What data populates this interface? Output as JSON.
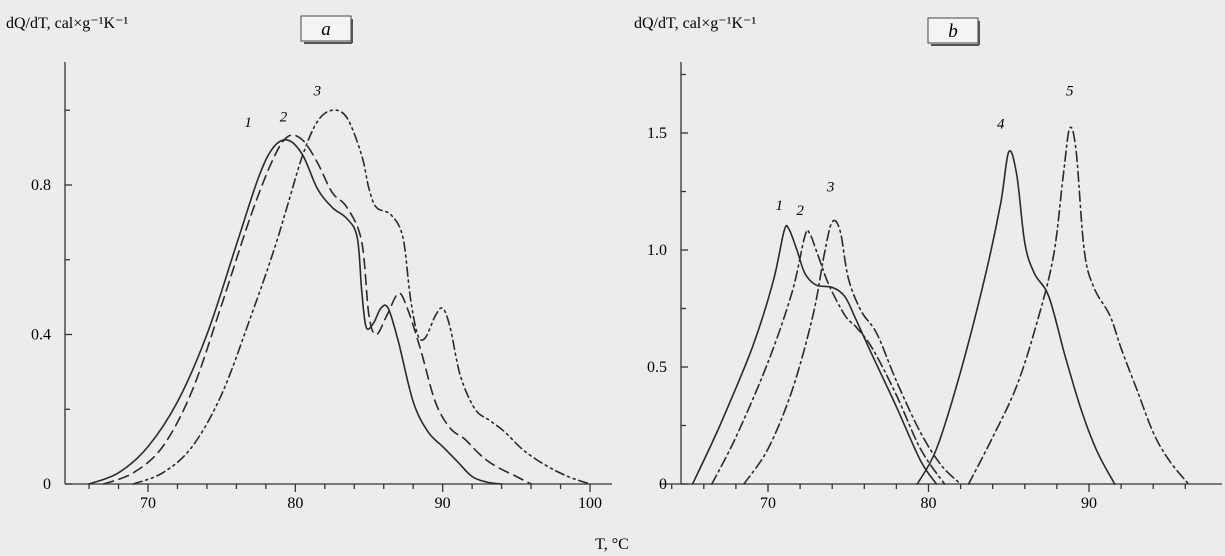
{
  "chart_data": [
    {
      "type": "line",
      "panel_label": "a",
      "ylabel": "dQ/dT, cal×g⁻¹K⁻¹",
      "xlabel": "T, °C",
      "xlim": [
        64,
        101
      ],
      "ylim": [
        0,
        1.15
      ],
      "xticks": [
        70,
        80,
        90,
        100
      ],
      "yticks": [
        0,
        0.4,
        0.8
      ],
      "ytick_labels": [
        "0",
        "0.4",
        "0.8"
      ],
      "grid": false,
      "series": [
        {
          "name": "1",
          "style": "solid",
          "label_at": [
            76.8,
            0.955
          ],
          "points": [
            [
              66,
              0
            ],
            [
              68,
              0.03
            ],
            [
              70,
              0.1
            ],
            [
              72,
              0.22
            ],
            [
              74,
              0.4
            ],
            [
              76,
              0.64
            ],
            [
              77.5,
              0.82
            ],
            [
              78.5,
              0.9
            ],
            [
              79.5,
              0.92
            ],
            [
              80.5,
              0.88
            ],
            [
              81.5,
              0.79
            ],
            [
              82.5,
              0.74
            ],
            [
              83.5,
              0.71
            ],
            [
              84.2,
              0.66
            ],
            [
              84.5,
              0.52
            ],
            [
              84.8,
              0.42
            ],
            [
              85.3,
              0.43
            ],
            [
              85.8,
              0.47
            ],
            [
              86.3,
              0.47
            ],
            [
              87,
              0.38
            ],
            [
              88,
              0.22
            ],
            [
              89,
              0.14
            ],
            [
              90,
              0.1
            ],
            [
              91,
              0.06
            ],
            [
              92,
              0.02
            ],
            [
              93,
              0.005
            ],
            [
              94,
              0
            ]
          ]
        },
        {
          "name": "2",
          "style": "dashed",
          "label_at": [
            79.2,
            0.97
          ],
          "points": [
            [
              67,
              0
            ],
            [
              69,
              0.03
            ],
            [
              71,
              0.1
            ],
            [
              73,
              0.25
            ],
            [
              75,
              0.48
            ],
            [
              77,
              0.72
            ],
            [
              78.5,
              0.87
            ],
            [
              79.5,
              0.93
            ],
            [
              80.5,
              0.92
            ],
            [
              81.5,
              0.86
            ],
            [
              82.5,
              0.78
            ],
            [
              83.5,
              0.74
            ],
            [
              84.5,
              0.65
            ],
            [
              85,
              0.45
            ],
            [
              85.5,
              0.4
            ],
            [
              86.2,
              0.45
            ],
            [
              87,
              0.51
            ],
            [
              87.6,
              0.47
            ],
            [
              88.5,
              0.36
            ],
            [
              89.5,
              0.22
            ],
            [
              90.5,
              0.15
            ],
            [
              91.5,
              0.12
            ],
            [
              92.5,
              0.08
            ],
            [
              93.5,
              0.05
            ],
            [
              95,
              0.02
            ],
            [
              96,
              0
            ]
          ]
        },
        {
          "name": "3",
          "style": "dash-dot-dot",
          "label_at": [
            81.5,
            1.04
          ],
          "points": [
            [
              69,
              0
            ],
            [
              71,
              0.03
            ],
            [
              73,
              0.1
            ],
            [
              75,
              0.24
            ],
            [
              77,
              0.45
            ],
            [
              78.5,
              0.62
            ],
            [
              79.5,
              0.75
            ],
            [
              80.5,
              0.88
            ],
            [
              81.5,
              0.97
            ],
            [
              82.5,
              1.0
            ],
            [
              83.5,
              0.98
            ],
            [
              84.5,
              0.88
            ],
            [
              85,
              0.79
            ],
            [
              85.5,
              0.74
            ],
            [
              86.5,
              0.72
            ],
            [
              87.3,
              0.66
            ],
            [
              87.8,
              0.5
            ],
            [
              88.3,
              0.4
            ],
            [
              88.8,
              0.39
            ],
            [
              89.5,
              0.45
            ],
            [
              90,
              0.47
            ],
            [
              90.5,
              0.42
            ],
            [
              91.2,
              0.29
            ],
            [
              92.2,
              0.2
            ],
            [
              93.2,
              0.17
            ],
            [
              94.2,
              0.14
            ],
            [
              95.5,
              0.09
            ],
            [
              97,
              0.05
            ],
            [
              98.5,
              0.02
            ],
            [
              100,
              0
            ]
          ]
        }
      ]
    },
    {
      "type": "line",
      "panel_label": "b",
      "ylabel": "dQ/dT, cal×g⁻¹K⁻¹",
      "xlabel": "T, °C",
      "xlim": [
        64,
        97
      ],
      "ylim": [
        0,
        1.8
      ],
      "xticks": [
        70,
        80,
        90
      ],
      "yticks": [
        0,
        0.5,
        1.0,
        1.5
      ],
      "ytick_labels": [
        "0",
        "0.5",
        "1.0",
        "1.5"
      ],
      "grid": false,
      "series": [
        {
          "name": "1",
          "style": "solid",
          "label_at": [
            70.7,
            1.17
          ],
          "points": [
            [
              65.3,
              0
            ],
            [
              67,
              0.25
            ],
            [
              69,
              0.58
            ],
            [
              70.3,
              0.86
            ],
            [
              71,
              1.08
            ],
            [
              71.3,
              1.09
            ],
            [
              71.8,
              1.0
            ],
            [
              72.3,
              0.9
            ],
            [
              73,
              0.85
            ],
            [
              74,
              0.84
            ],
            [
              74.8,
              0.8
            ],
            [
              75.5,
              0.7
            ],
            [
              76.5,
              0.55
            ],
            [
              78,
              0.33
            ],
            [
              79.5,
              0.1
            ],
            [
              80.5,
              0
            ]
          ]
        },
        {
          "name": "2",
          "style": "dash-dot",
          "label_at": [
            72.0,
            1.15
          ],
          "points": [
            [
              66.5,
              0
            ],
            [
              68,
              0.2
            ],
            [
              70,
              0.52
            ],
            [
              71.5,
              0.82
            ],
            [
              72.3,
              1.06
            ],
            [
              72.6,
              1.07
            ],
            [
              73.1,
              0.98
            ],
            [
              73.8,
              0.85
            ],
            [
              74.8,
              0.72
            ],
            [
              75.5,
              0.67
            ],
            [
              76.5,
              0.58
            ],
            [
              78,
              0.38
            ],
            [
              79.5,
              0.15
            ],
            [
              81,
              0
            ]
          ]
        },
        {
          "name": "3",
          "style": "dash-dot",
          "label_at": [
            73.9,
            1.25
          ],
          "points": [
            [
              68.5,
              0
            ],
            [
              70,
              0.15
            ],
            [
              71.5,
              0.4
            ],
            [
              72.8,
              0.72
            ],
            [
              73.5,
              0.98
            ],
            [
              74,
              1.12
            ],
            [
              74.5,
              1.08
            ],
            [
              75,
              0.88
            ],
            [
              75.8,
              0.74
            ],
            [
              76.8,
              0.64
            ],
            [
              78,
              0.44
            ],
            [
              79.5,
              0.22
            ],
            [
              80.8,
              0.08
            ],
            [
              82,
              0
            ]
          ]
        },
        {
          "name": "4",
          "style": "solid",
          "label_at": [
            84.5,
            1.52
          ],
          "points": [
            [
              79.3,
              0
            ],
            [
              80.5,
              0.15
            ],
            [
              82,
              0.48
            ],
            [
              83.5,
              0.88
            ],
            [
              84.5,
              1.2
            ],
            [
              85,
              1.42
            ],
            [
              85.5,
              1.32
            ],
            [
              86,
              1.03
            ],
            [
              86.6,
              0.9
            ],
            [
              87.5,
              0.8
            ],
            [
              88.5,
              0.55
            ],
            [
              89.5,
              0.32
            ],
            [
              90.5,
              0.14
            ],
            [
              91.6,
              0
            ]
          ]
        },
        {
          "name": "5",
          "style": "dash-dot",
          "label_at": [
            88.8,
            1.66
          ],
          "points": [
            [
              82.5,
              0
            ],
            [
              84,
              0.2
            ],
            [
              85.5,
              0.42
            ],
            [
              86.8,
              0.7
            ],
            [
              87.8,
              0.98
            ],
            [
              88.4,
              1.32
            ],
            [
              88.8,
              1.52
            ],
            [
              89.2,
              1.42
            ],
            [
              89.7,
              1.0
            ],
            [
              90.3,
              0.84
            ],
            [
              91.3,
              0.72
            ],
            [
              92,
              0.58
            ],
            [
              93,
              0.4
            ],
            [
              94,
              0.22
            ],
            [
              95,
              0.1
            ],
            [
              96.2,
              0
            ]
          ]
        }
      ]
    }
  ]
}
